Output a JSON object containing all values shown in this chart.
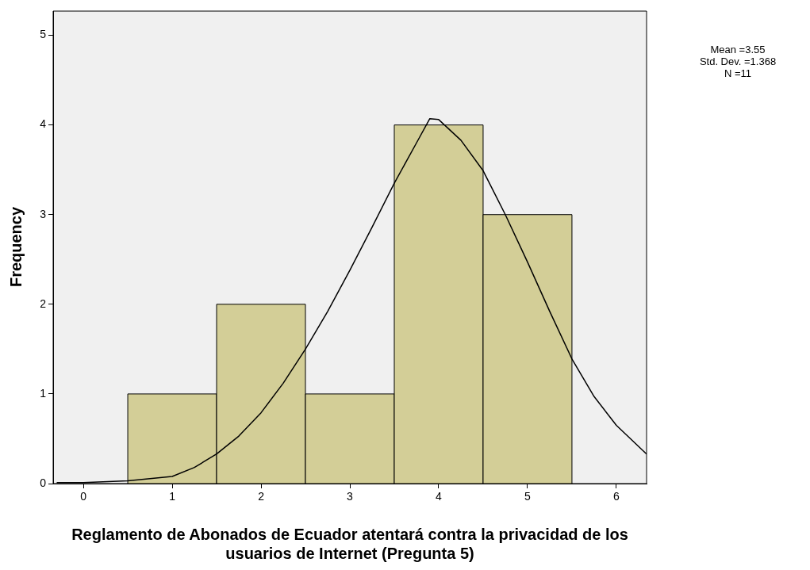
{
  "chart_data": {
    "type": "histogram",
    "xlabel": "Reglamento de Abonados de Ecuador atentará contra la privacidad de los usuarios de Internet (Pregunta 5)",
    "ylabel": "Frequency",
    "bins": [
      0.5,
      1.5,
      2.5,
      3.5,
      4.5,
      5.5
    ],
    "values": [
      1,
      2,
      1,
      4,
      3
    ],
    "color": "#d3ce97",
    "series": [
      {
        "type": "line",
        "color": "#000000",
        "x": [
          -0.3,
          0,
          0.5,
          1,
          1.25,
          1.5,
          1.75,
          2,
          2.25,
          2.5,
          2.75,
          3,
          3.25,
          3.5,
          3.75,
          3.9,
          4,
          4.25,
          4.5,
          4.75,
          5,
          5.25,
          5.5,
          5.75,
          6,
          6.34
        ],
        "values": [
          0.01,
          0.01,
          0.03,
          0.08,
          0.18,
          0.33,
          0.53,
          0.79,
          1.12,
          1.5,
          1.92,
          2.38,
          2.86,
          3.35,
          3.8,
          4.07,
          4.06,
          3.83,
          3.49,
          3.0,
          2.47,
          1.92,
          1.39,
          0.97,
          0.65,
          0.33
        ]
      }
    ],
    "xlim": [
      -0.34,
      6.34
    ],
    "xticks": [
      0,
      1,
      2,
      3,
      4,
      5,
      6
    ],
    "ylim": [
      0,
      5.27
    ],
    "yticks": [
      0,
      1,
      2,
      3,
      4,
      5
    ],
    "grid": false,
    "legend": false,
    "annotations": [
      "Mean =3.55",
      "Std. Dev. =1.368",
      "N =11"
    ]
  }
}
